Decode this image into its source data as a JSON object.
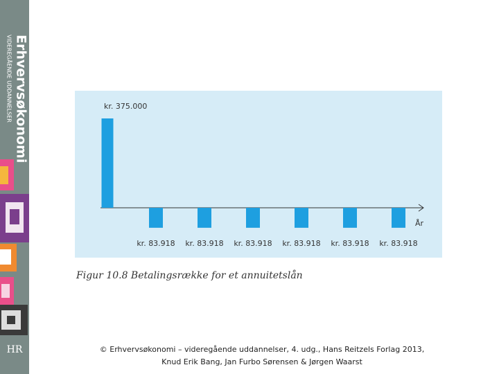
{
  "sidebar": {
    "title": "Erhvervsøkonomi",
    "subtitle": "VIDEREGÅENDE UDDANNELSER",
    "logo": "HR"
  },
  "chart_data": {
    "type": "bar",
    "categories": [
      null,
      null,
      null,
      null,
      null,
      null,
      null
    ],
    "values": [
      375000,
      -83918,
      -83918,
      -83918,
      -83918,
      -83918,
      -83918
    ],
    "value_labels": [
      "kr. 375.000",
      "kr. 83.918",
      "kr. 83.918",
      "kr. 83.918",
      "kr. 83.918",
      "kr. 83.918",
      "kr. 83.918"
    ],
    "color": "#1e9fe0",
    "x_label": "År"
  },
  "caption": "Figur 10.8 Betalingsrække for et annuitetslån",
  "footer": {
    "line1": "© Erhvervsøkonomi – videregående uddannelser, 4. udg., Hans Reitzels Forlag 2013,",
    "line2": "Knud Erik Bang, Jan Furbo Sørensen & Jørgen Waarst"
  }
}
